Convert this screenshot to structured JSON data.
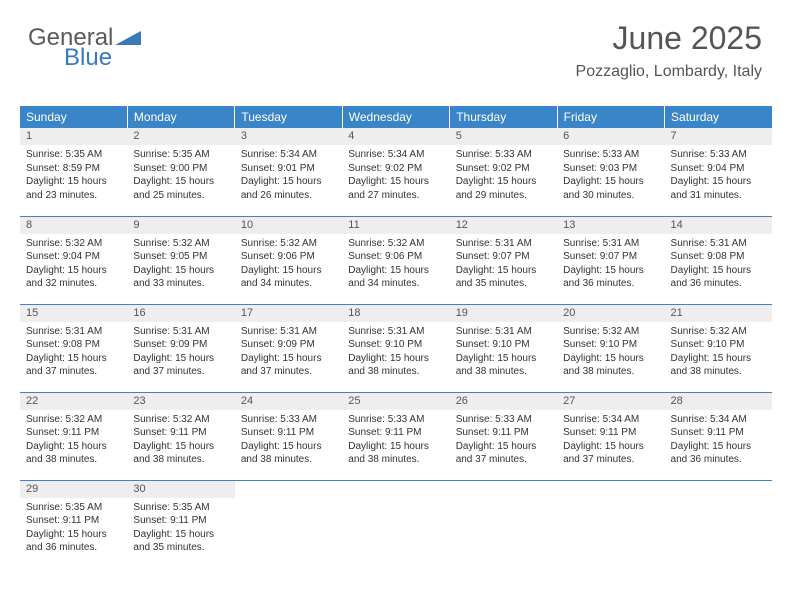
{
  "logo": {
    "text1": "General",
    "text2": "Blue"
  },
  "header": {
    "title": "June 2025",
    "location": "Pozzaglio, Lombardy, Italy"
  },
  "colors": {
    "header_bg": "#3a85c7",
    "header_text": "#ffffff",
    "daynum_bg": "#eeeeee",
    "border": "#3a85c7",
    "logo_blue": "#3a7ab8",
    "logo_gray": "#5a5a5a"
  },
  "weekdays": [
    "Sunday",
    "Monday",
    "Tuesday",
    "Wednesday",
    "Thursday",
    "Friday",
    "Saturday"
  ],
  "weeks": [
    [
      {
        "n": "1",
        "sunrise": "5:35 AM",
        "sunset": "8:59 PM",
        "daylight": "15 hours and 23 minutes."
      },
      {
        "n": "2",
        "sunrise": "5:35 AM",
        "sunset": "9:00 PM",
        "daylight": "15 hours and 25 minutes."
      },
      {
        "n": "3",
        "sunrise": "5:34 AM",
        "sunset": "9:01 PM",
        "daylight": "15 hours and 26 minutes."
      },
      {
        "n": "4",
        "sunrise": "5:34 AM",
        "sunset": "9:02 PM",
        "daylight": "15 hours and 27 minutes."
      },
      {
        "n": "5",
        "sunrise": "5:33 AM",
        "sunset": "9:02 PM",
        "daylight": "15 hours and 29 minutes."
      },
      {
        "n": "6",
        "sunrise": "5:33 AM",
        "sunset": "9:03 PM",
        "daylight": "15 hours and 30 minutes."
      },
      {
        "n": "7",
        "sunrise": "5:33 AM",
        "sunset": "9:04 PM",
        "daylight": "15 hours and 31 minutes."
      }
    ],
    [
      {
        "n": "8",
        "sunrise": "5:32 AM",
        "sunset": "9:04 PM",
        "daylight": "15 hours and 32 minutes."
      },
      {
        "n": "9",
        "sunrise": "5:32 AM",
        "sunset": "9:05 PM",
        "daylight": "15 hours and 33 minutes."
      },
      {
        "n": "10",
        "sunrise": "5:32 AM",
        "sunset": "9:06 PM",
        "daylight": "15 hours and 34 minutes."
      },
      {
        "n": "11",
        "sunrise": "5:32 AM",
        "sunset": "9:06 PM",
        "daylight": "15 hours and 34 minutes."
      },
      {
        "n": "12",
        "sunrise": "5:31 AM",
        "sunset": "9:07 PM",
        "daylight": "15 hours and 35 minutes."
      },
      {
        "n": "13",
        "sunrise": "5:31 AM",
        "sunset": "9:07 PM",
        "daylight": "15 hours and 36 minutes."
      },
      {
        "n": "14",
        "sunrise": "5:31 AM",
        "sunset": "9:08 PM",
        "daylight": "15 hours and 36 minutes."
      }
    ],
    [
      {
        "n": "15",
        "sunrise": "5:31 AM",
        "sunset": "9:08 PM",
        "daylight": "15 hours and 37 minutes."
      },
      {
        "n": "16",
        "sunrise": "5:31 AM",
        "sunset": "9:09 PM",
        "daylight": "15 hours and 37 minutes."
      },
      {
        "n": "17",
        "sunrise": "5:31 AM",
        "sunset": "9:09 PM",
        "daylight": "15 hours and 37 minutes."
      },
      {
        "n": "18",
        "sunrise": "5:31 AM",
        "sunset": "9:10 PM",
        "daylight": "15 hours and 38 minutes."
      },
      {
        "n": "19",
        "sunrise": "5:31 AM",
        "sunset": "9:10 PM",
        "daylight": "15 hours and 38 minutes."
      },
      {
        "n": "20",
        "sunrise": "5:32 AM",
        "sunset": "9:10 PM",
        "daylight": "15 hours and 38 minutes."
      },
      {
        "n": "21",
        "sunrise": "5:32 AM",
        "sunset": "9:10 PM",
        "daylight": "15 hours and 38 minutes."
      }
    ],
    [
      {
        "n": "22",
        "sunrise": "5:32 AM",
        "sunset": "9:11 PM",
        "daylight": "15 hours and 38 minutes."
      },
      {
        "n": "23",
        "sunrise": "5:32 AM",
        "sunset": "9:11 PM",
        "daylight": "15 hours and 38 minutes."
      },
      {
        "n": "24",
        "sunrise": "5:33 AM",
        "sunset": "9:11 PM",
        "daylight": "15 hours and 38 minutes."
      },
      {
        "n": "25",
        "sunrise": "5:33 AM",
        "sunset": "9:11 PM",
        "daylight": "15 hours and 38 minutes."
      },
      {
        "n": "26",
        "sunrise": "5:33 AM",
        "sunset": "9:11 PM",
        "daylight": "15 hours and 37 minutes."
      },
      {
        "n": "27",
        "sunrise": "5:34 AM",
        "sunset": "9:11 PM",
        "daylight": "15 hours and 37 minutes."
      },
      {
        "n": "28",
        "sunrise": "5:34 AM",
        "sunset": "9:11 PM",
        "daylight": "15 hours and 36 minutes."
      }
    ],
    [
      {
        "n": "29",
        "sunrise": "5:35 AM",
        "sunset": "9:11 PM",
        "daylight": "15 hours and 36 minutes."
      },
      {
        "n": "30",
        "sunrise": "5:35 AM",
        "sunset": "9:11 PM",
        "daylight": "15 hours and 35 minutes."
      },
      null,
      null,
      null,
      null,
      null
    ]
  ],
  "labels": {
    "sunrise": "Sunrise: ",
    "sunset": "Sunset: ",
    "daylight": "Daylight: "
  }
}
